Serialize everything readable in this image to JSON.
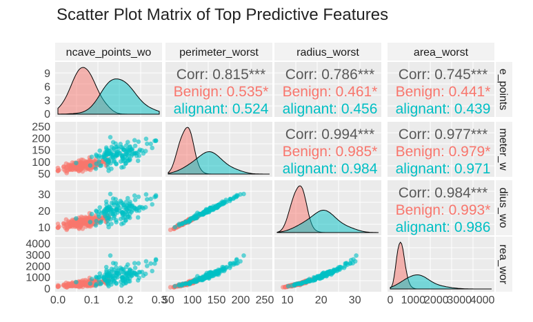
{
  "title": "Scatter Plot Matrix of Top Predictive Features",
  "colors": {
    "benign": "#F8766D",
    "malignant": "#00BFC4",
    "panel_bg": "#EBEBEB",
    "strip_bg": "#F2F2F2"
  },
  "chart_data": {
    "type": "scatter",
    "variables": [
      "concave_points_worst",
      "perimeter_worst",
      "radius_worst",
      "area_worst"
    ],
    "strip_labels_top": [
      "ncave_points_wo",
      "perimeter_worst",
      "radius_worst",
      "area_worst"
    ],
    "strip_labels_right": [
      "e_points",
      "meter_w",
      "dius_wo",
      "rea_wor"
    ],
    "ranges": [
      [
        0,
        0.3
      ],
      [
        50,
        260
      ],
      [
        7,
        37
      ],
      [
        0,
        4400
      ]
    ],
    "x_ticks": [
      [
        "0.0",
        "0.1",
        "0.2",
        "0.3"
      ],
      [
        "50",
        "100",
        "150",
        "200",
        "250"
      ],
      [
        "10",
        "20",
        "30"
      ],
      [
        "0",
        "1000",
        "2000",
        "3000",
        "4000"
      ]
    ],
    "y_ticks": [
      [
        "0",
        "3",
        "6",
        "9"
      ],
      [
        "50",
        "100",
        "150",
        "200",
        "250"
      ],
      [
        "10",
        "20",
        "30"
      ],
      [
        "0",
        "1000",
        "2000",
        "3000",
        "4000"
      ]
    ],
    "groups": [
      {
        "name": "Benign",
        "color": "#F8766D",
        "means": [
          0.075,
          88,
          13.4,
          560
        ],
        "sds": [
          0.033,
          13.5,
          1.9,
          160
        ]
      },
      {
        "name": "Malignant",
        "color": "#00BFC4",
        "means": [
          0.182,
          141,
          21.1,
          1420
        ],
        "sds": [
          0.045,
          29.5,
          4.3,
          600
        ]
      }
    ],
    "density_peaks": {
      "concave_points_worst": [
        9.9,
        7.6
      ]
    },
    "correlations": [
      {
        "row": 0,
        "col": 1,
        "lines": [
          "Corr: 0.815***",
          "Benign: 0.535*",
          "alignant: 0.524"
        ]
      },
      {
        "row": 0,
        "col": 2,
        "lines": [
          "Corr: 0.786***",
          "Benign: 0.461*",
          "alignant: 0.456"
        ]
      },
      {
        "row": 0,
        "col": 3,
        "lines": [
          "Corr: 0.745***",
          "Benign: 0.441*",
          "alignant: 0.439"
        ]
      },
      {
        "row": 1,
        "col": 2,
        "lines": [
          "Corr: 0.994***",
          "Benign: 0.985*",
          "alignant: 0.984"
        ]
      },
      {
        "row": 1,
        "col": 3,
        "lines": [
          "Corr: 0.977***",
          "Benign: 0.979*",
          "alignant: 0.971"
        ]
      },
      {
        "row": 2,
        "col": 3,
        "lines": [
          "Corr: 0.984***",
          "Benign: 0.993*",
          "alignant: 0.986"
        ]
      }
    ]
  }
}
